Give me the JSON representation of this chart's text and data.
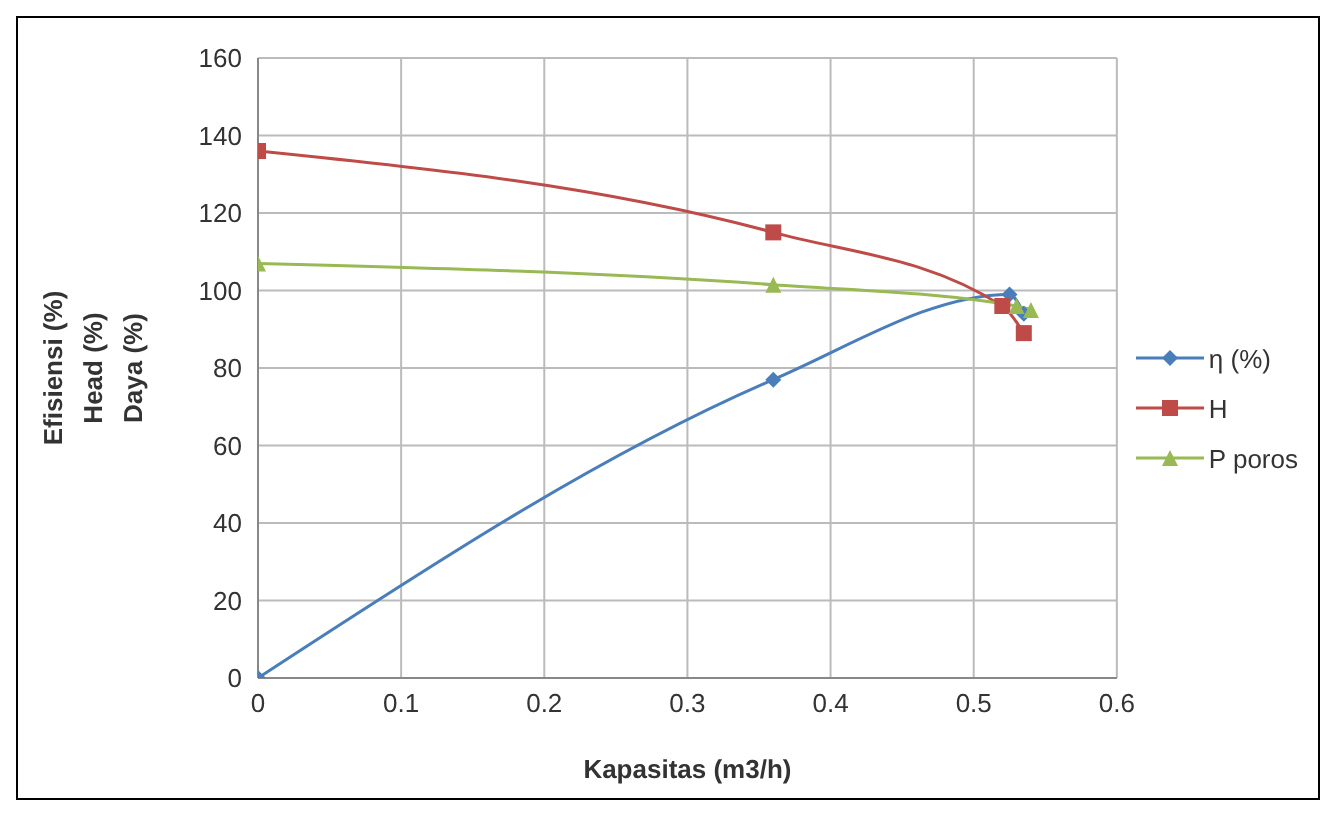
{
  "chart_data": {
    "type": "line",
    "xlabel": "Kapasitas (m3/h)",
    "ylabel": "Efisiensi (%)\nHead (%)\nDaya (%)",
    "xlim": [
      0,
      0.6
    ],
    "xticks": [
      0,
      0.1,
      0.2,
      0.3,
      0.4,
      0.5,
      0.6
    ],
    "ylim": [
      0,
      160
    ],
    "yticks": [
      0,
      20,
      40,
      60,
      80,
      100,
      120,
      140,
      160
    ],
    "grid": true,
    "legend": "right",
    "series": [
      {
        "name": "η (%)",
        "color": "#4a7ebb",
        "marker": "diamond",
        "x": [
          0,
          0.36,
          0.525,
          0.535
        ],
        "values": [
          0,
          77,
          99,
          94
        ]
      },
      {
        "name": "H",
        "color": "#be4b48",
        "marker": "square",
        "x": [
          0,
          0.36,
          0.52,
          0.535
        ],
        "values": [
          136,
          115,
          96,
          89
        ]
      },
      {
        "name": "P poros",
        "color": "#98b954",
        "marker": "triangle",
        "x": [
          0,
          0.36,
          0.53,
          0.54
        ],
        "values": [
          107,
          101.5,
          96,
          95
        ]
      }
    ]
  }
}
